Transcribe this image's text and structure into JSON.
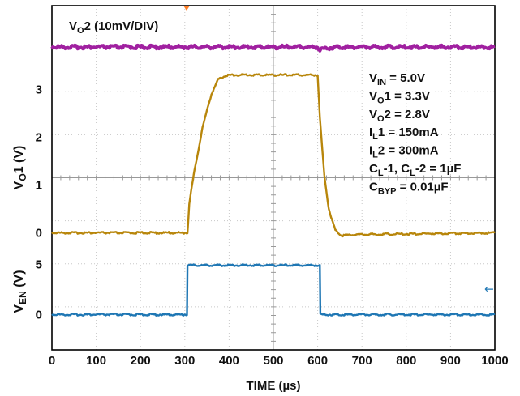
{
  "chart_data": {
    "type": "line",
    "title": "",
    "xlabel": "TIME (µs)",
    "xlim": [
      0,
      1000
    ],
    "x_ticks": [
      "0",
      "100",
      "200",
      "300",
      "400",
      "500",
      "600",
      "700",
      "800",
      "900",
      "1000"
    ],
    "grid": true,
    "panels": [
      {
        "name": "VO2",
        "label": "VO2 (10mV/DIV)",
        "label_parts": [
          "V",
          "O",
          "2 (10mV/DIV)"
        ],
        "color": "#a020a0",
        "x": [
          0,
          600,
          605,
          615,
          640,
          1000
        ],
        "y": [
          0,
          0,
          -0.6,
          -0.3,
          0,
          0
        ]
      },
      {
        "name": "VO1",
        "ylabel": "VO1 (V)",
        "ylabel_parts": [
          "V",
          "O",
          "1 (V)"
        ],
        "ylim": [
          -0.5,
          3.8
        ],
        "yticks": [
          "0",
          "1",
          "2",
          "3"
        ],
        "color": "#b8860b",
        "x": [
          0,
          306,
          310,
          320,
          340,
          360,
          375,
          390,
          405,
          600,
          605,
          615,
          625,
          640,
          655,
          670,
          1000
        ],
        "y": [
          0,
          0,
          0.6,
          1.2,
          2.2,
          2.9,
          3.2,
          3.28,
          3.3,
          3.3,
          2.4,
          1.2,
          0.5,
          0.05,
          -0.06,
          -0.04,
          0
        ]
      },
      {
        "name": "VEN",
        "ylabel": "VEN (V)",
        "ylabel_parts": [
          "V",
          "EN",
          " (V)"
        ],
        "ylim": [
          -3.5,
          8
        ],
        "yticks": [
          "0",
          "5"
        ],
        "color": "#1f77b4",
        "x": [
          0,
          305,
          306,
          605,
          606,
          1000
        ],
        "y": [
          0,
          0,
          4.9,
          4.9,
          0,
          0
        ],
        "marker_symbol": "←"
      }
    ],
    "annotations": [
      {
        "parts": [
          "V",
          "IN",
          " = 5.0V"
        ]
      },
      {
        "parts": [
          "V",
          "O",
          "1 = 3.3V"
        ]
      },
      {
        "parts": [
          "V",
          "O",
          "2 = 2.8V"
        ]
      },
      {
        "parts": [
          "I",
          "L",
          "1 = 150mA"
        ]
      },
      {
        "parts": [
          "I",
          "L",
          "2 = 300mA"
        ]
      },
      {
        "parts": [
          "C",
          "L",
          "-1, C",
          "L",
          "-2 = 1µF"
        ]
      },
      {
        "parts": [
          "C",
          "BYP",
          " = 0.01µF"
        ]
      }
    ]
  }
}
